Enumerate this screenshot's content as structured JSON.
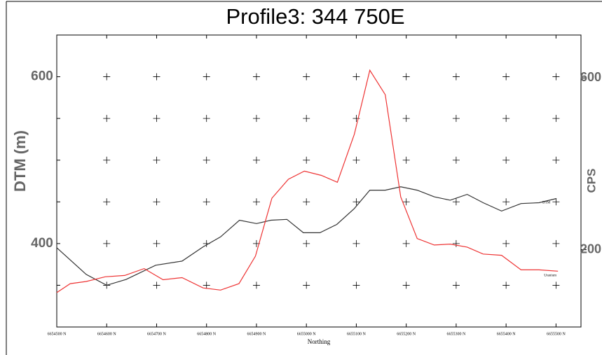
{
  "chart_data": {
    "type": "line",
    "title": "Profile3: 344 750E",
    "xlabel": "Northing",
    "ylabel": "DTM (m)",
    "y2label": "CPS",
    "xlim": [
      6654500,
      6655550
    ],
    "ylim": [
      300,
      650
    ],
    "y2lim": [
      20,
      700
    ],
    "xticks": [
      {
        "value": 6654500,
        "label": "6654500 N"
      },
      {
        "value": 6654600,
        "label": "6654600 N"
      },
      {
        "value": 6654700,
        "label": "6654700 N"
      },
      {
        "value": 6654800,
        "label": "6654800 N"
      },
      {
        "value": 6654900,
        "label": "6654900 N"
      },
      {
        "value": 6655000,
        "label": "6655000 N"
      },
      {
        "value": 6655100,
        "label": "6655100 N"
      },
      {
        "value": 6655200,
        "label": "6655200 N"
      },
      {
        "value": 6655300,
        "label": "6655300 N"
      },
      {
        "value": 6655400,
        "label": "6655400 N"
      },
      {
        "value": 6655500,
        "label": "6655500 N"
      }
    ],
    "yticks": [
      {
        "value": 350,
        "label": null
      },
      400,
      {
        "value": 450,
        "label": null
      },
      {
        "value": 500,
        "label": null
      },
      {
        "value": 550,
        "label": null
      },
      600
    ],
    "y2ticks": [
      200,
      600
    ],
    "grid": true,
    "series": [
      {
        "name": "DTM",
        "color": "#333333",
        "x": [
          6654500,
          6654559,
          6654600,
          6654639,
          6654698,
          6654751,
          6654793,
          6654828,
          6654866,
          6654900,
          6654929,
          6654961,
          6654994,
          6655027,
          6655061,
          6655096,
          6655127,
          6655158,
          6655189,
          6655222,
          6655256,
          6655288,
          6655322,
          6655354,
          6655391,
          6655430,
          6655466,
          6655501
        ],
        "values": [
          395,
          363,
          350,
          357,
          374,
          379,
          396,
          408,
          428,
          424,
          428,
          429,
          413,
          413,
          423,
          442,
          464,
          464,
          468,
          464,
          456,
          452,
          459,
          449,
          439,
          448,
          449,
          454
        ]
      },
      {
        "name": "Uranium",
        "color": "#ee3333",
        "axis": "y2",
        "x": [
          6654500,
          6654527,
          6654559,
          6654597,
          6654636,
          6654675,
          6654713,
          6654751,
          6654793,
          6654828,
          6654865,
          6654898,
          6654931,
          6654964,
          6654996,
          6655030,
          6655062,
          6655096,
          6655127,
          6655158,
          6655189,
          6655222,
          6655256,
          6655288,
          6655322,
          6655354,
          6655391,
          6655430,
          6655466,
          6655504
        ],
        "values": [
          100,
          121,
          126,
          137,
          140,
          156,
          130,
          135,
          111,
          106,
          121,
          185,
          320,
          364,
          383,
          373,
          357,
          469,
          618,
          561,
          323,
          226,
          211,
          213,
          206,
          190,
          187,
          153,
          153,
          150
        ]
      }
    ]
  }
}
